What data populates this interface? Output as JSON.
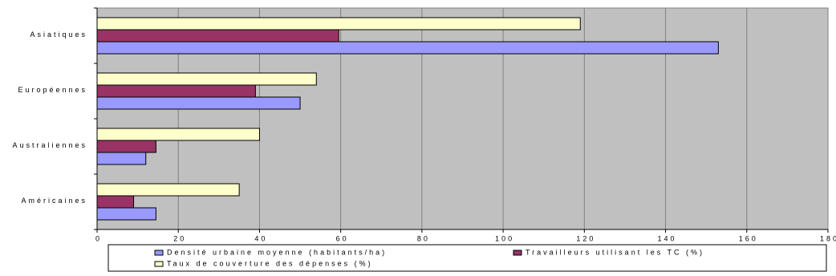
{
  "chart_data": {
    "type": "hbar",
    "categories": [
      "Asiatiques",
      "Européennes",
      "Australiennes",
      "Américaines"
    ],
    "series": [
      {
        "name": "Densité urbaine moyenne (habitants/ha)",
        "color": "#9999ff",
        "values": [
          153,
          50,
          12,
          14.5
        ]
      },
      {
        "name": "Travailleurs utilisant les TC (%)",
        "color": "#993366",
        "values": [
          59.5,
          39,
          14.5,
          9
        ]
      },
      {
        "name": "Taux de couverture des dépenses (%)",
        "color": "#ffffcc",
        "values": [
          119,
          54,
          40,
          35
        ]
      }
    ],
    "xlim": [
      0,
      180
    ],
    "xticks": [
      0,
      20,
      40,
      60,
      80,
      100,
      120,
      140,
      160,
      180
    ],
    "grid": true,
    "legend": "bottom"
  }
}
